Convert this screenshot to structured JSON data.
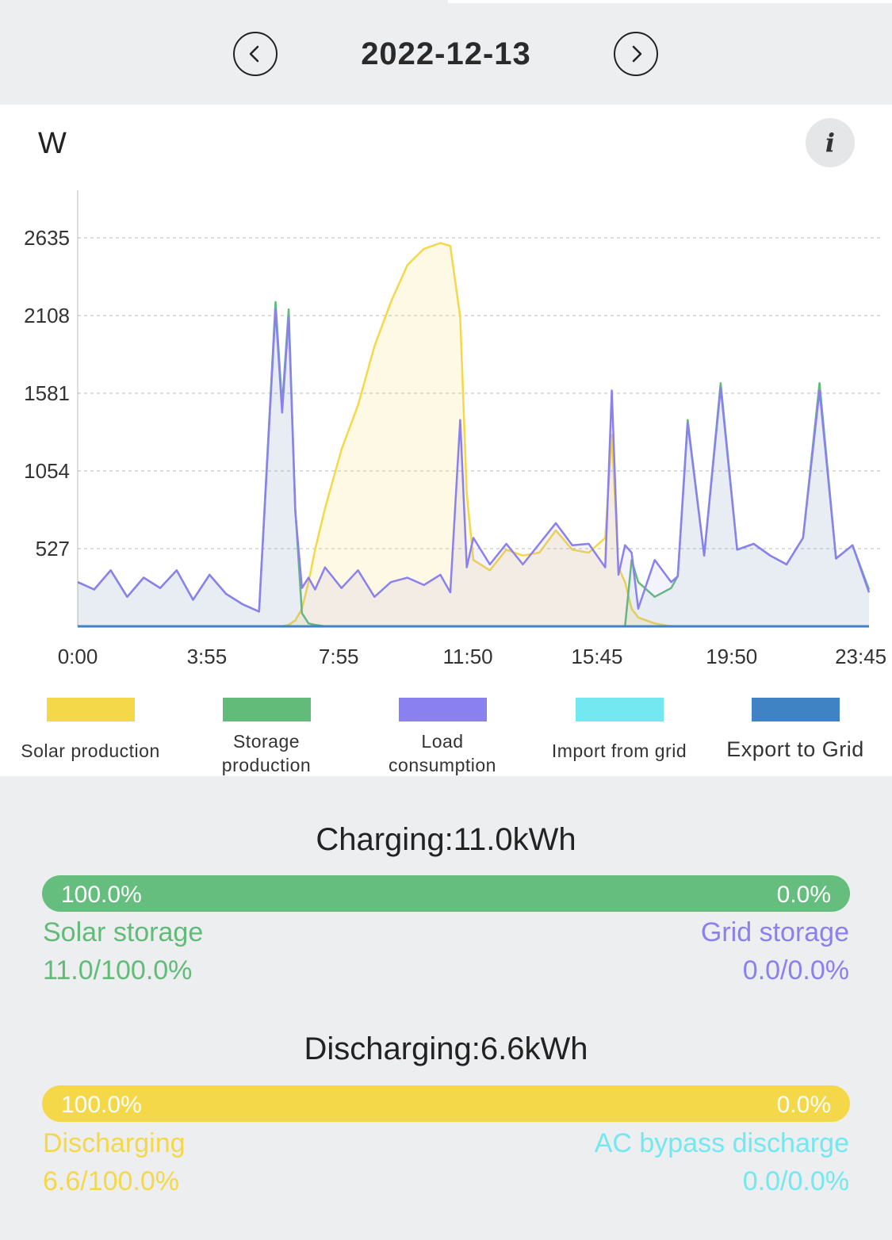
{
  "date": "2022-12-13",
  "unit": "W",
  "info_icon_glyph": "i",
  "icons": {
    "prev": "chevron-left-icon",
    "next": "chevron-right-icon",
    "info": "info-icon"
  },
  "colors": {
    "solar": "#f5d84a",
    "storage": "#62bb78",
    "load": "#8b80f0",
    "import": "#73e8f0",
    "export": "#3f83c5"
  },
  "legend": [
    {
      "label": "Solar production",
      "color": "#f5d84a"
    },
    {
      "label": "Storage\nproduction",
      "color": "#62bb78"
    },
    {
      "label": "Load\nconsumption",
      "color": "#8b80f0"
    },
    {
      "label": "Import from grid",
      "color": "#73e8f0"
    },
    {
      "label": "Export to Grid",
      "color": "#3f83c5"
    }
  ],
  "chart_data": {
    "type": "line",
    "ylabel": "W",
    "ylim": [
      0,
      2635
    ],
    "y_ticks": [
      527,
      1054,
      1581,
      2108,
      2635
    ],
    "x_ticks": [
      "0:00",
      "3:55",
      "7:55",
      "11:50",
      "15:45",
      "19:50",
      "23:45"
    ],
    "grid": "horizontal dashed",
    "x_hours": [
      0,
      0.5,
      1,
      1.5,
      2,
      2.5,
      3,
      3.5,
      4,
      4.5,
      5,
      5.5,
      6,
      6.2,
      6.4,
      6.6,
      6.8,
      7,
      7.2,
      7.5,
      8,
      8.5,
      9,
      9.5,
      10,
      10.5,
      11,
      11.3,
      11.6,
      11.8,
      12,
      12.5,
      13,
      13.5,
      14,
      14.5,
      15,
      15.5,
      16,
      16.2,
      16.4,
      16.6,
      16.8,
      17,
      17.5,
      18,
      18.2,
      18.5,
      19,
      19.5,
      20,
      20.5,
      21,
      21.5,
      22,
      22.5,
      23,
      23.5,
      24
    ],
    "series": [
      {
        "name": "Solar production",
        "values": [
          0,
          0,
          0,
          0,
          0,
          0,
          0,
          0,
          0,
          0,
          0,
          0,
          0,
          0,
          10,
          40,
          120,
          300,
          520,
          800,
          1200,
          1500,
          1900,
          2200,
          2450,
          2560,
          2600,
          2580,
          2100,
          900,
          450,
          380,
          520,
          480,
          500,
          650,
          520,
          500,
          600,
          1300,
          400,
          300,
          120,
          60,
          20,
          0,
          0,
          0,
          0,
          0,
          0,
          0,
          0,
          0,
          0,
          0,
          0,
          0,
          0
        ]
      },
      {
        "name": "Storage production",
        "values": [
          300,
          250,
          380,
          200,
          330,
          260,
          380,
          180,
          350,
          220,
          150,
          100,
          2200,
          1500,
          2150,
          800,
          90,
          20,
          10,
          0,
          0,
          0,
          0,
          0,
          0,
          0,
          0,
          0,
          0,
          0,
          0,
          0,
          0,
          0,
          0,
          0,
          0,
          0,
          0,
          0,
          0,
          0,
          450,
          300,
          200,
          260,
          340,
          1400,
          480,
          1650,
          520,
          560,
          480,
          420,
          600,
          1650,
          460,
          550,
          250
        ]
      },
      {
        "name": "Load consumption",
        "values": [
          300,
          250,
          380,
          200,
          330,
          260,
          380,
          180,
          350,
          220,
          150,
          100,
          2150,
          1450,
          2100,
          780,
          260,
          330,
          250,
          400,
          260,
          380,
          200,
          300,
          330,
          280,
          350,
          230,
          1400,
          400,
          600,
          420,
          560,
          420,
          560,
          700,
          550,
          560,
          400,
          1600,
          350,
          550,
          500,
          120,
          450,
          300,
          340,
          1380,
          480,
          1620,
          520,
          560,
          480,
          420,
          600,
          1600,
          460,
          550,
          230
        ]
      },
      {
        "name": "Import from grid",
        "values": [
          0,
          0,
          0,
          0,
          0,
          0,
          0,
          0,
          0,
          0,
          0,
          0,
          0,
          0,
          0,
          0,
          0,
          0,
          0,
          0,
          0,
          0,
          0,
          0,
          0,
          0,
          0,
          0,
          0,
          0,
          0,
          0,
          0,
          0,
          0,
          0,
          0,
          0,
          0,
          0,
          0,
          0,
          0,
          0,
          0,
          0,
          0,
          0,
          0,
          0,
          0,
          0,
          0,
          0,
          0,
          0,
          0,
          0,
          0
        ]
      },
      {
        "name": "Export to Grid",
        "values": [
          0,
          0,
          0,
          0,
          0,
          0,
          0,
          0,
          0,
          0,
          0,
          0,
          0,
          0,
          0,
          0,
          0,
          0,
          0,
          0,
          0,
          0,
          0,
          0,
          0,
          0,
          0,
          0,
          0,
          0,
          0,
          0,
          0,
          0,
          0,
          0,
          0,
          0,
          0,
          0,
          0,
          0,
          0,
          0,
          0,
          0,
          0,
          0,
          0,
          0,
          0,
          0,
          0,
          0,
          0,
          0,
          0,
          0,
          0
        ]
      }
    ]
  },
  "charging": {
    "title": "Charging:11.0kWh",
    "left_pct": "100.0%",
    "right_pct": "0.0%",
    "left_label": "Solar storage",
    "right_label": "Grid storage",
    "left_value": "11.0/100.0%",
    "right_value": "0.0/0.0%",
    "bar_color": "#65be7e",
    "left_color": "#62bb78",
    "right_color": "#8b80f0",
    "fill": 1.0
  },
  "discharging": {
    "title": "Discharging:6.6kWh",
    "left_pct": "100.0%",
    "right_pct": "0.0%",
    "left_label": "Discharging",
    "right_label": "AC bypass discharge",
    "left_value": "6.6/100.0%",
    "right_value": "0.0/0.0%",
    "bar_color": "#f5d84a",
    "left_color": "#f5d84a",
    "right_color": "#73e8f0",
    "fill": 1.0
  }
}
